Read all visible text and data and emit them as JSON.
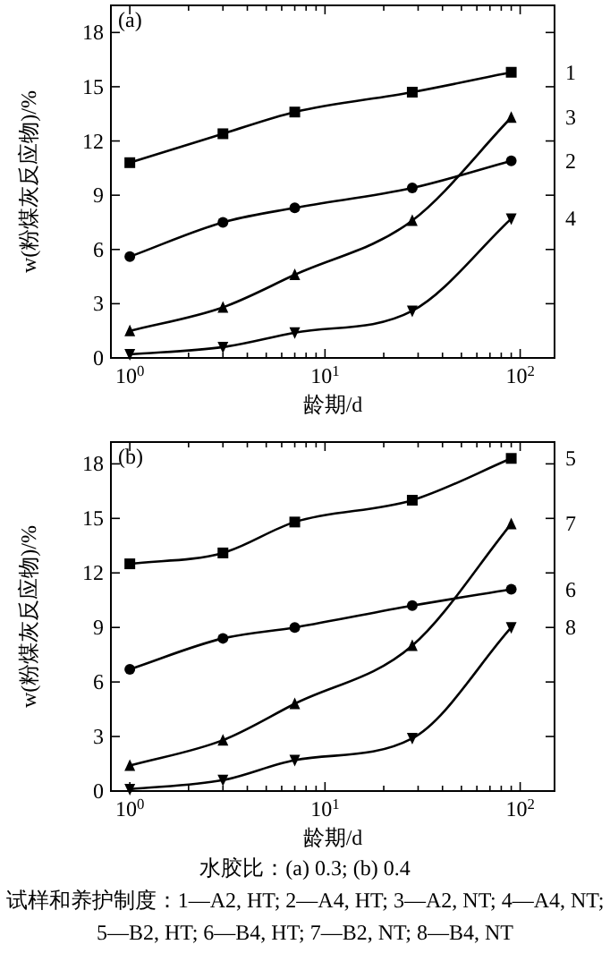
{
  "chart_data": [
    {
      "type": "line",
      "title": "(a)",
      "xlabel": "龄期/d",
      "ylabel": "w(粉煤灰反应物)/%",
      "log": "x",
      "grid": false,
      "legend": "right",
      "x": [
        1,
        3,
        7,
        28,
        90
      ],
      "xlim": [
        0.8,
        150
      ],
      "ylim": [
        0,
        19.5
      ],
      "xticks": [
        {
          "value": 1,
          "label": "10$^{0}$"
        },
        {
          "value": 2,
          "label": null
        },
        {
          "value": 3,
          "label": null
        },
        {
          "value": 4,
          "label": null
        },
        {
          "value": 5,
          "label": null
        },
        {
          "value": 6,
          "label": null
        },
        {
          "value": 7,
          "label": null
        },
        {
          "value": 8,
          "label": null
        },
        {
          "value": 9,
          "label": null
        },
        {
          "value": 10,
          "label": "10$^{1}$"
        },
        {
          "value": 20,
          "label": null
        },
        {
          "value": 30,
          "label": null
        },
        {
          "value": 40,
          "label": null
        },
        {
          "value": 50,
          "label": null
        },
        {
          "value": 60,
          "label": null
        },
        {
          "value": 70,
          "label": null
        },
        {
          "value": 80,
          "label": null
        },
        {
          "value": 90,
          "label": null
        },
        {
          "value": 100,
          "label": "10$^{2}$"
        }
      ],
      "yticks": [
        0,
        3,
        6,
        9,
        12,
        15,
        18
      ],
      "series": [
        {
          "name": "1",
          "color": "#000000",
          "marker": "square",
          "values": [
            10.8,
            12.4,
            13.6,
            14.7,
            15.8
          ]
        },
        {
          "name": "2",
          "color": "#000000",
          "marker": "circle",
          "values": [
            5.6,
            7.5,
            8.3,
            9.4,
            10.9
          ]
        },
        {
          "name": "3",
          "color": "#000000",
          "marker": "triangle",
          "values": [
            1.5,
            2.8,
            4.6,
            7.6,
            13.3
          ]
        },
        {
          "name": "4",
          "color": "#000000",
          "marker": "triangle_down",
          "values": [
            0.2,
            0.6,
            1.4,
            2.6,
            7.7
          ]
        }
      ]
    },
    {
      "type": "line",
      "title": "(b)",
      "xlabel": "龄期/d",
      "ylabel": "w(粉煤灰反应物)/%",
      "log": "x",
      "grid": false,
      "legend": "right",
      "x": [
        1,
        3,
        7,
        28,
        90
      ],
      "xlim": [
        0.8,
        150
      ],
      "ylim": [
        0,
        19.2
      ],
      "xticks": [
        {
          "value": 1,
          "label": "10$^{0}$"
        },
        {
          "value": 2,
          "label": null
        },
        {
          "value": 3,
          "label": null
        },
        {
          "value": 4,
          "label": null
        },
        {
          "value": 5,
          "label": null
        },
        {
          "value": 6,
          "label": null
        },
        {
          "value": 7,
          "label": null
        },
        {
          "value": 8,
          "label": null
        },
        {
          "value": 9,
          "label": null
        },
        {
          "value": 10,
          "label": "10$^{1}$"
        },
        {
          "value": 20,
          "label": null
        },
        {
          "value": 30,
          "label": null
        },
        {
          "value": 40,
          "label": null
        },
        {
          "value": 50,
          "label": null
        },
        {
          "value": 60,
          "label": null
        },
        {
          "value": 70,
          "label": null
        },
        {
          "value": 80,
          "label": null
        },
        {
          "value": 90,
          "label": null
        },
        {
          "value": 100,
          "label": "10$^{2}$"
        }
      ],
      "yticks": [
        0,
        3,
        6,
        9,
        12,
        15,
        18
      ],
      "series": [
        {
          "name": "5",
          "color": "#000000",
          "marker": "square",
          "values": [
            12.5,
            13.1,
            14.8,
            16.0,
            18.3
          ]
        },
        {
          "name": "6",
          "color": "#000000",
          "marker": "circle",
          "values": [
            6.7,
            8.4,
            9.0,
            10.2,
            11.1
          ]
        },
        {
          "name": "7",
          "color": "#000000",
          "marker": "triangle",
          "values": [
            1.4,
            2.8,
            4.8,
            8.0,
            14.7
          ]
        },
        {
          "name": "8",
          "color": "#000000",
          "marker": "triangle_down",
          "values": [
            0.1,
            0.6,
            1.7,
            2.9,
            9.0
          ]
        }
      ],
      "annotations": [
        "水胶比：(a) 0.3; (b) 0.4",
        "试样和养护制度：1—A2, HT; 2—A4, HT; 3—A2, NT; 4—A4, NT; 5—B2, HT; 6—B4, HT; 7—B2, NT; 8—B4, NT"
      ]
    }
  ]
}
